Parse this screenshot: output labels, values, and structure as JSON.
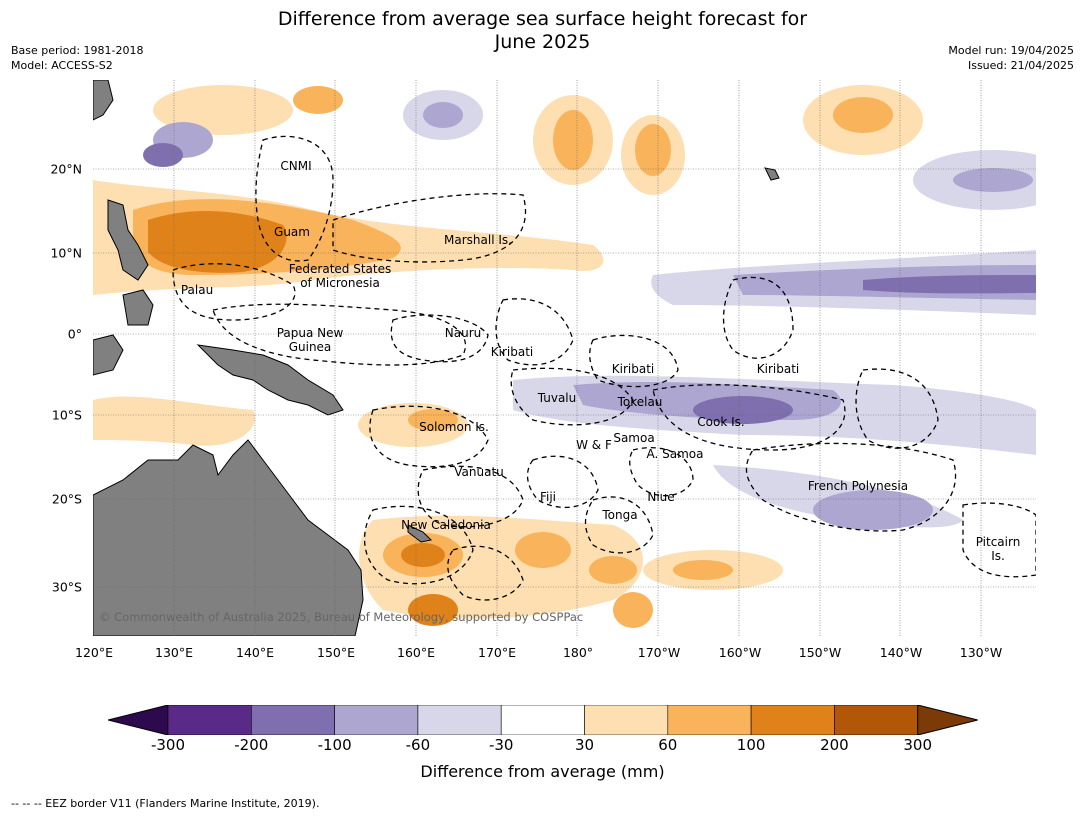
{
  "title_line1": "Difference from average sea surface height forecast for",
  "title_line2": "June 2025",
  "base_period": "Base period: 1981-2018",
  "model": "Model: ACCESS-S2",
  "model_run": "Model run: 19/04/2025",
  "issued": "Issued: 21/04/2025",
  "copyright": "© Commonwealth of Australia 2025, Bureau of Meteorology, supported by COSPPac",
  "lon_ticks": [
    "120°E",
    "130°E",
    "140°E",
    "150°E",
    "160°E",
    "170°E",
    "180°",
    "170°W",
    "160°W",
    "150°W",
    "140°W",
    "130°W"
  ],
  "lat_ticks": [
    "20°N",
    "10°N",
    "0°",
    "10°S",
    "20°S",
    "30°S"
  ],
  "region_labels": [
    {
      "text": "CNMI"
    },
    {
      "text": "Guam"
    },
    {
      "text": "Marshall Is."
    },
    {
      "text": "Federated States\nof Micronesia"
    },
    {
      "text": "Palau"
    },
    {
      "text": "Papua New\nGuinea"
    },
    {
      "text": "Nauru"
    },
    {
      "text": "Kiribati"
    },
    {
      "text": "Kiribati"
    },
    {
      "text": "Kiribati"
    },
    {
      "text": "Tuvalu"
    },
    {
      "text": "Tokelau"
    },
    {
      "text": "Cook Is."
    },
    {
      "text": "Solomon Is."
    },
    {
      "text": "W & F"
    },
    {
      "text": "Samoa"
    },
    {
      "text": "A. Samoa"
    },
    {
      "text": "Vanuatu"
    },
    {
      "text": "Fiji"
    },
    {
      "text": "Niue"
    },
    {
      "text": "Tonga"
    },
    {
      "text": "French Polynesia"
    },
    {
      "text": "New Caledonia"
    },
    {
      "text": "Pitcairn\nIs."
    }
  ],
  "colorbar": {
    "labels": [
      "-300",
      "-200",
      "-100",
      "-60",
      "-30",
      "30",
      "60",
      "100",
      "200",
      "300"
    ],
    "colors": [
      "#2d0a4e",
      "#5a2a88",
      "#7f6fae",
      "#aca6d0",
      "#d8d7ea",
      "#ffffff",
      "#fddfb1",
      "#f9b35a",
      "#e0821a",
      "#b25607",
      "#7b3a08"
    ],
    "title": "Difference from average (mm)"
  },
  "footnote": "--  --  -- EEZ border V11 (Flanders Marine Institute, 2019)."
}
